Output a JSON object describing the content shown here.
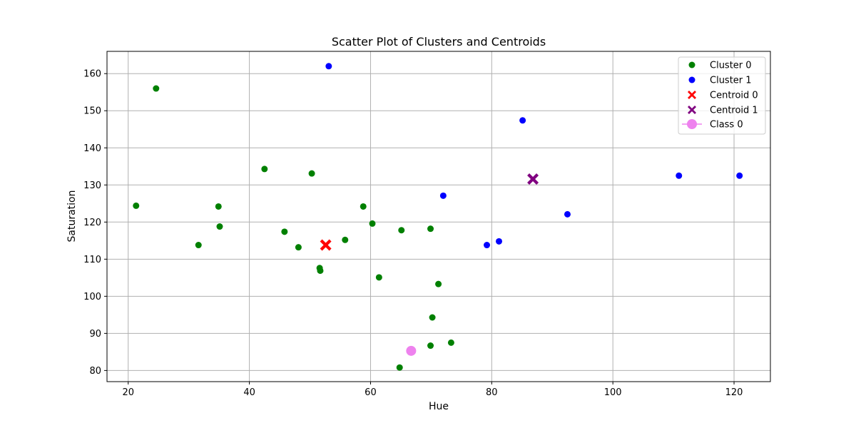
{
  "chart_data": {
    "type": "scatter",
    "title": "Scatter Plot of Clusters and Centroids",
    "xlabel": "Hue",
    "ylabel": "Saturation",
    "xlim": [
      16.5,
      126.0
    ],
    "ylim": [
      77.0,
      166.0
    ],
    "xticks": [
      20,
      40,
      60,
      80,
      100,
      120
    ],
    "yticks": [
      80,
      90,
      100,
      110,
      120,
      130,
      140,
      150,
      160
    ],
    "grid": true,
    "legend_position": "top-right",
    "series": [
      {
        "name": "Cluster 0",
        "marker": "circle",
        "color": "#008000",
        "points": [
          [
            24.6,
            156.0
          ],
          [
            21.3,
            124.4
          ],
          [
            31.6,
            113.8
          ],
          [
            34.9,
            124.2
          ],
          [
            35.1,
            118.8
          ],
          [
            42.5,
            134.3
          ],
          [
            45.8,
            117.4
          ],
          [
            48.1,
            113.2
          ],
          [
            50.3,
            133.1
          ],
          [
            51.6,
            107.6
          ],
          [
            51.7,
            106.9
          ],
          [
            55.8,
            115.2
          ],
          [
            58.8,
            124.2
          ],
          [
            60.3,
            119.6
          ],
          [
            61.4,
            105.1
          ],
          [
            65.1,
            117.8
          ],
          [
            64.8,
            80.8
          ],
          [
            69.9,
            118.2
          ],
          [
            71.2,
            103.3
          ],
          [
            70.2,
            94.3
          ],
          [
            69.9,
            86.7
          ],
          [
            73.3,
            87.5
          ]
        ]
      },
      {
        "name": "Cluster 1",
        "marker": "circle",
        "color": "#0000ff",
        "points": [
          [
            53.1,
            162.0
          ],
          [
            72.0,
            127.1
          ],
          [
            79.2,
            113.8
          ],
          [
            81.2,
            114.8
          ],
          [
            85.1,
            147.4
          ],
          [
            92.5,
            122.1
          ],
          [
            110.9,
            132.5
          ],
          [
            120.9,
            132.5
          ]
        ]
      },
      {
        "name": "Centroid 0",
        "marker": "x",
        "color": "#ff0000",
        "points": [
          [
            52.6,
            113.8
          ]
        ]
      },
      {
        "name": "Centroid 1",
        "marker": "x",
        "color": "#800080",
        "points": [
          [
            86.8,
            131.6
          ]
        ]
      },
      {
        "name": "Class 0",
        "marker": "big-circle",
        "color": "#ee82ee",
        "points": [
          [
            66.7,
            85.3
          ]
        ]
      }
    ]
  }
}
